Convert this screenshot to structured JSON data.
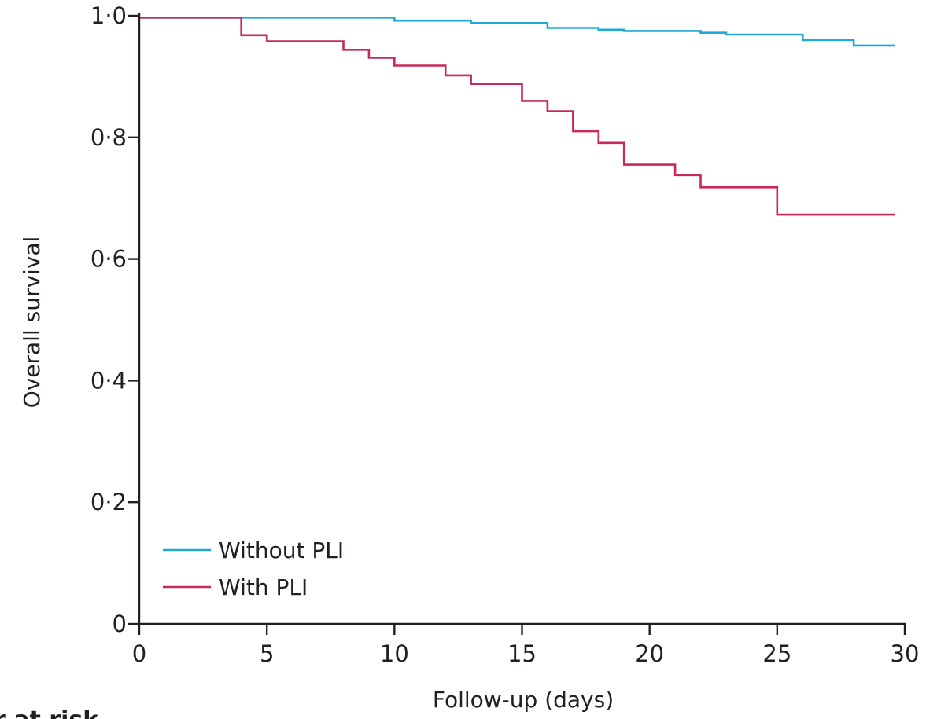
{
  "chart_data": {
    "type": "line",
    "step": true,
    "xlabel": "Follow-up (days)",
    "ylabel": "Overall survival",
    "xlim": [
      0,
      30
    ],
    "ylim": [
      0,
      1.0
    ],
    "x_ticks": [
      0,
      5,
      10,
      15,
      20,
      25,
      30
    ],
    "x_tick_labels": [
      "0",
      "5",
      "10",
      "15",
      "20",
      "25",
      "30"
    ],
    "y_ticks": [
      0,
      0.2,
      0.4,
      0.6,
      0.8,
      1.0
    ],
    "y_tick_labels": [
      "0",
      "0·2",
      "0·4",
      "0·6",
      "0·8",
      "1·0"
    ],
    "grid": false,
    "legend_position": "bottom-left",
    "series": [
      {
        "name": "Without PLI",
        "color": "#1fa8d8",
        "points": [
          [
            0,
            0.997
          ],
          [
            10,
            0.992
          ],
          [
            13,
            0.988
          ],
          [
            16,
            0.98
          ],
          [
            18,
            0.977
          ],
          [
            19,
            0.975
          ],
          [
            22,
            0.972
          ],
          [
            23,
            0.969
          ],
          [
            26,
            0.96
          ],
          [
            28,
            0.951
          ],
          [
            29.6,
            0.951
          ]
        ]
      },
      {
        "name": "With PLI",
        "color": "#c8285a",
        "points": [
          [
            0,
            0.997
          ],
          [
            4,
            0.968
          ],
          [
            5,
            0.958
          ],
          [
            8,
            0.944
          ],
          [
            9,
            0.931
          ],
          [
            10,
            0.918
          ],
          [
            12,
            0.902
          ],
          [
            13,
            0.888
          ],
          [
            15,
            0.86
          ],
          [
            16,
            0.843
          ],
          [
            17,
            0.81
          ],
          [
            18,
            0.791
          ],
          [
            19,
            0.755
          ],
          [
            21,
            0.738
          ],
          [
            22,
            0.718
          ],
          [
            25,
            0.673
          ],
          [
            29.6,
            0.673
          ]
        ]
      }
    ],
    "cutoff_text": "r at risk"
  }
}
